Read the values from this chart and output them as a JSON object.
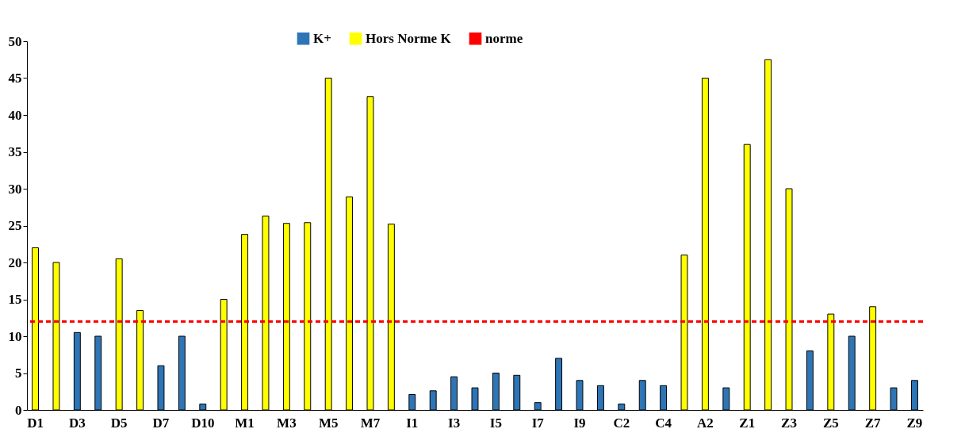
{
  "chart_data": {
    "type": "bar",
    "categories": [
      "D1",
      null,
      "D3",
      null,
      "D5",
      null,
      "D7",
      null,
      "D10",
      null,
      "M1",
      null,
      "M3",
      null,
      "M5",
      null,
      "M7",
      null,
      "I1",
      null,
      "I3",
      null,
      "I5",
      null,
      "I7",
      null,
      "I9",
      null,
      "C2",
      null,
      "C4",
      null,
      "A2",
      null,
      "Z1",
      null,
      "Z3",
      null,
      "Z5",
      null,
      "Z7",
      null,
      "Z9"
    ],
    "series": [
      {
        "name": "K+",
        "color": "#2e75b6",
        "values": [
          null,
          null,
          10.5,
          10,
          null,
          null,
          6,
          10,
          0.8,
          null,
          null,
          null,
          null,
          null,
          null,
          null,
          null,
          null,
          2.1,
          2.6,
          4.5,
          3,
          5,
          4.7,
          1,
          7,
          4,
          3.3,
          0.8,
          4,
          3.3,
          null,
          null,
          3,
          null,
          null,
          null,
          8,
          null,
          10,
          null,
          3,
          4
        ]
      },
      {
        "name": "Hors Norme K",
        "color": "#ffff00",
        "values": [
          22,
          20,
          null,
          null,
          20.5,
          13.5,
          null,
          null,
          null,
          15,
          23.8,
          26.3,
          25.3,
          25.4,
          45,
          28.9,
          42.5,
          25.2,
          null,
          null,
          null,
          null,
          null,
          null,
          null,
          null,
          null,
          null,
          null,
          null,
          null,
          21,
          45,
          null,
          36,
          47.5,
          30,
          null,
          13,
          null,
          14,
          null,
          null
        ]
      }
    ],
    "ylim": [
      0,
      50
    ],
    "yticks": [
      0,
      5,
      10,
      15,
      20,
      25,
      30,
      35,
      40,
      45,
      50
    ],
    "ref_lines": [
      {
        "axis": "y",
        "value": 12,
        "label": "norme",
        "color": "#ff0000",
        "line_style": "dashed"
      }
    ],
    "grid": false,
    "legend": "top"
  }
}
